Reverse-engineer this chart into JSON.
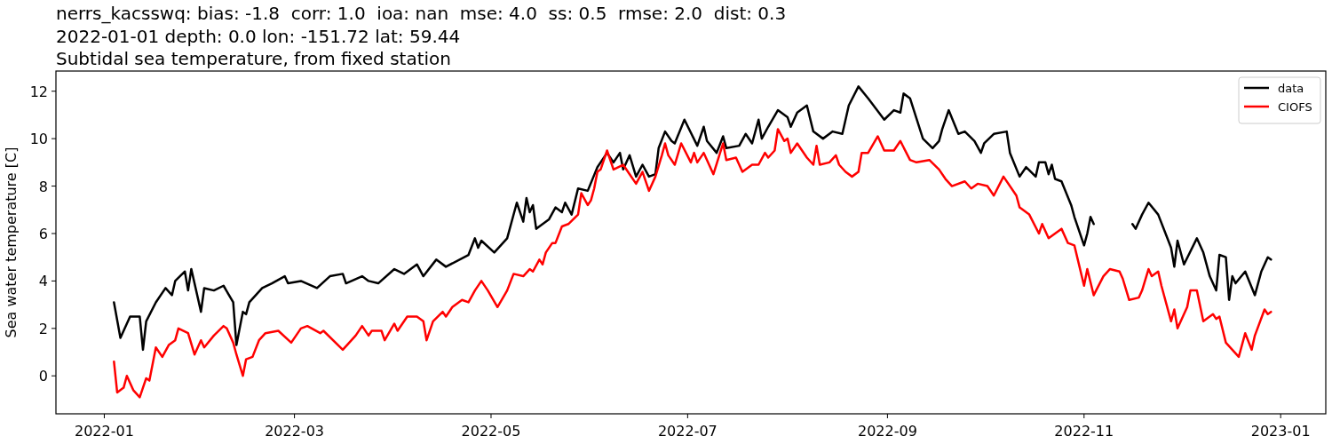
{
  "chart_data": {
    "type": "line",
    "title": "nerrs_kacsswq: bias: -1.8  corr: 1.0  ioa: nan  mse: 4.0  ss: 0.5  rmse: 2.0  dist: 0.3",
    "subtitle": "2022-01-01 depth: 0.0 lon: -151.72 lat: 59.44\nSubtidal sea temperature, from fixed station",
    "ylabel": "Sea water temperature [C]",
    "xlim": [
      "2021-12-17",
      "2023-01-15"
    ],
    "xticks": [
      "2022-01",
      "2022-03",
      "2022-05",
      "2022-07",
      "2022-09",
      "2022-11",
      "2023-01"
    ],
    "ylim": [
      -1.6,
      12.85
    ],
    "yticks": [
      0,
      2,
      4,
      6,
      8,
      10,
      12
    ],
    "grid": false,
    "legend": "top right",
    "line_style": "solid",
    "marker": "none",
    "series": [
      {
        "name": "data",
        "color": "#000000",
        "x": [
          "2022-01-04",
          "2022-01-06",
          "2022-01-09",
          "2022-01-12",
          "2022-01-13",
          "2022-01-14",
          "2022-01-17",
          "2022-01-20",
          "2022-01-22",
          "2022-01-23",
          "2022-01-26",
          "2022-01-27",
          "2022-01-28",
          "2022-01-31",
          "2022-02-01",
          "2022-02-04",
          "2022-02-07",
          "2022-02-10",
          "2022-02-11",
          "2022-02-13",
          "2022-02-14",
          "2022-02-15",
          "2022-02-19",
          "2022-02-22",
          "2022-02-26",
          "2022-02-27",
          "2022-03-03",
          "2022-03-08",
          "2022-03-12",
          "2022-03-16",
          "2022-03-17",
          "2022-03-22",
          "2022-03-24",
          "2022-03-27",
          "2022-04-01",
          "2022-04-04",
          "2022-04-08",
          "2022-04-10",
          "2022-04-14",
          "2022-04-17",
          "2022-04-24",
          "2022-04-26",
          "2022-04-27",
          "2022-04-28",
          "2022-05-02",
          "2022-05-06",
          "2022-05-09",
          "2022-05-11",
          "2022-05-12",
          "2022-05-13",
          "2022-05-14",
          "2022-05-15",
          "2022-05-19",
          "2022-05-21",
          "2022-05-23",
          "2022-05-24",
          "2022-05-26",
          "2022-05-28",
          "2022-05-31",
          "2022-06-03",
          "2022-06-06",
          "2022-06-08",
          "2022-06-10",
          "2022-06-11",
          "2022-06-13",
          "2022-06-15",
          "2022-06-17",
          "2022-06-19",
          "2022-06-21",
          "2022-06-22",
          "2022-06-24",
          "2022-06-26",
          "2022-06-27",
          "2022-06-30",
          "2022-07-04",
          "2022-07-06",
          "2022-07-07",
          "2022-07-10",
          "2022-07-12",
          "2022-07-13",
          "2022-07-17",
          "2022-07-19",
          "2022-07-21",
          "2022-07-23",
          "2022-07-24",
          "2022-07-26",
          "2022-07-29",
          "2022-08-01",
          "2022-08-02",
          "2022-08-04",
          "2022-08-07",
          "2022-08-09",
          "2022-08-12",
          "2022-08-15",
          "2022-08-18",
          "2022-08-20",
          "2022-08-23",
          "2022-08-26",
          "2022-08-31",
          "2022-09-03",
          "2022-09-05",
          "2022-09-06",
          "2022-09-08",
          "2022-09-12",
          "2022-09-15",
          "2022-09-17",
          "2022-09-18",
          "2022-09-20",
          "2022-09-23",
          "2022-09-25",
          "2022-09-28",
          "2022-09-30",
          "2022-10-01",
          "2022-10-04",
          "2022-10-08",
          "2022-10-09",
          "2022-10-12",
          "2022-10-14",
          "2022-10-17",
          "2022-10-18",
          "2022-10-20",
          "2022-10-21",
          "2022-10-22",
          "2022-10-23",
          "2022-10-25",
          "2022-10-28",
          "2022-10-29",
          "2022-11-01",
          "2022-11-02",
          "2022-11-03",
          "2022-11-04",
          "2022-11-10",
          "2022-11-16",
          "2022-11-17",
          "2022-11-19",
          "2022-11-21",
          "2022-11-24",
          "2022-11-28",
          "2022-11-29",
          "2022-11-30",
          "2022-12-02",
          "2022-12-06",
          "2022-12-08",
          "2022-12-10",
          "2022-12-12",
          "2022-12-13",
          "2022-12-15",
          "2022-12-16",
          "2022-12-17",
          "2022-12-18",
          "2022-12-21",
          "2022-12-24",
          "2022-12-26",
          "2022-12-28",
          "2022-12-29"
        ],
        "values": [
          3.1,
          1.6,
          2.5,
          2.5,
          1.1,
          2.3,
          3.1,
          3.7,
          3.4,
          4.0,
          4.4,
          3.6,
          4.5,
          2.7,
          3.7,
          3.6,
          3.8,
          3.1,
          1.3,
          2.7,
          2.6,
          3.1,
          3.7,
          3.9,
          4.2,
          3.9,
          4.0,
          3.7,
          4.2,
          4.3,
          3.9,
          4.2,
          4.0,
          3.9,
          4.5,
          4.3,
          4.7,
          4.2,
          4.9,
          4.6,
          5.1,
          5.8,
          5.4,
          5.7,
          5.2,
          5.8,
          7.3,
          6.5,
          7.5,
          6.9,
          7.2,
          6.2,
          6.6,
          7.1,
          6.9,
          7.3,
          6.8,
          7.9,
          7.8,
          8.8,
          9.4,
          9.0,
          9.4,
          8.7,
          9.3,
          8.4,
          8.9,
          8.4,
          8.5,
          9.6,
          10.3,
          9.9,
          9.8,
          10.8,
          9.7,
          10.5,
          9.9,
          9.4,
          10.1,
          9.6,
          9.7,
          10.2,
          9.8,
          10.8,
          10.0,
          10.5,
          11.2,
          10.9,
          10.5,
          11.1,
          11.4,
          10.3,
          10.0,
          10.3,
          10.2,
          11.4,
          12.2,
          11.7,
          10.8,
          11.2,
          11.1,
          11.9,
          11.7,
          10.0,
          9.6,
          9.9,
          10.4,
          11.2,
          10.2,
          10.3,
          9.9,
          9.4,
          9.8,
          10.2,
          10.3,
          9.4,
          8.4,
          8.8,
          8.4,
          9.0,
          9.0,
          8.5,
          8.9,
          8.3,
          8.2,
          7.2,
          6.7,
          5.5,
          6.0,
          6.7,
          6.4,
          null,
          6.4,
          6.2,
          6.8,
          7.3,
          6.8,
          5.4,
          4.6,
          5.7,
          4.7,
          5.8,
          5.2,
          4.2,
          3.6,
          5.1,
          5.0,
          3.2,
          4.2,
          3.9,
          4.4,
          3.4,
          4.4,
          5.0,
          4.9
        ]
      },
      {
        "name": "CIOFS",
        "color": "#ff0000",
        "x": [
          "2022-01-04",
          "2022-01-05",
          "2022-01-07",
          "2022-01-08",
          "2022-01-10",
          "2022-01-12",
          "2022-01-14",
          "2022-01-15",
          "2022-01-17",
          "2022-01-19",
          "2022-01-21",
          "2022-01-23",
          "2022-01-24",
          "2022-01-27",
          "2022-01-29",
          "2022-01-31",
          "2022-02-01",
          "2022-02-04",
          "2022-02-07",
          "2022-02-08",
          "2022-02-10",
          "2022-02-11",
          "2022-02-13",
          "2022-02-14",
          "2022-02-16",
          "2022-02-18",
          "2022-02-20",
          "2022-02-24",
          "2022-02-28",
          "2022-03-03",
          "2022-03-05",
          "2022-03-09",
          "2022-03-10",
          "2022-03-16",
          "2022-03-18",
          "2022-03-20",
          "2022-03-22",
          "2022-03-24",
          "2022-03-25",
          "2022-03-28",
          "2022-03-29",
          "2022-04-01",
          "2022-04-02",
          "2022-04-05",
          "2022-04-08",
          "2022-04-10",
          "2022-04-11",
          "2022-04-13",
          "2022-04-16",
          "2022-04-17",
          "2022-04-19",
          "2022-04-22",
          "2022-04-24",
          "2022-04-26",
          "2022-04-28",
          "2022-04-30",
          "2022-05-03",
          "2022-05-06",
          "2022-05-08",
          "2022-05-11",
          "2022-05-13",
          "2022-05-14",
          "2022-05-16",
          "2022-05-17",
          "2022-05-18",
          "2022-05-20",
          "2022-05-21",
          "2022-05-23",
          "2022-05-25",
          "2022-05-28",
          "2022-05-29",
          "2022-05-31",
          "2022-06-01",
          "2022-06-02",
          "2022-06-03",
          "2022-06-04",
          "2022-06-06",
          "2022-06-08",
          "2022-06-11",
          "2022-06-13",
          "2022-06-15",
          "2022-06-17",
          "2022-06-19",
          "2022-06-21",
          "2022-06-23",
          "2022-06-24",
          "2022-06-25",
          "2022-06-27",
          "2022-06-29",
          "2022-07-02",
          "2022-07-03",
          "2022-07-04",
          "2022-07-06",
          "2022-07-09",
          "2022-07-12",
          "2022-07-13",
          "2022-07-16",
          "2022-07-18",
          "2022-07-21",
          "2022-07-23",
          "2022-07-25",
          "2022-07-26",
          "2022-07-28",
          "2022-07-29",
          "2022-07-31",
          "2022-08-01",
          "2022-08-02",
          "2022-08-04",
          "2022-08-07",
          "2022-08-09",
          "2022-08-10",
          "2022-08-11",
          "2022-08-14",
          "2022-08-16",
          "2022-08-17",
          "2022-08-19",
          "2022-08-21",
          "2022-08-23",
          "2022-08-24",
          "2022-08-26",
          "2022-08-29",
          "2022-08-31",
          "2022-09-03",
          "2022-09-05",
          "2022-09-08",
          "2022-09-10",
          "2022-09-14",
          "2022-09-17",
          "2022-09-19",
          "2022-09-21",
          "2022-09-25",
          "2022-09-27",
          "2022-09-29",
          "2022-10-02",
          "2022-10-04",
          "2022-10-07",
          "2022-10-11",
          "2022-10-12",
          "2022-10-15",
          "2022-10-18",
          "2022-10-19",
          "2022-10-21",
          "2022-10-25",
          "2022-10-27",
          "2022-10-29",
          "2022-11-01",
          "2022-11-02",
          "2022-11-04",
          "2022-11-07",
          "2022-11-09",
          "2022-11-12",
          "2022-11-13",
          "2022-11-15",
          "2022-11-18",
          "2022-11-19",
          "2022-11-21",
          "2022-11-22",
          "2022-11-24",
          "2022-11-25",
          "2022-11-28",
          "2022-11-29",
          "2022-11-30",
          "2022-12-03",
          "2022-12-04",
          "2022-12-06",
          "2022-12-08",
          "2022-12-11",
          "2022-12-12",
          "2022-12-13",
          "2022-12-15",
          "2022-12-17",
          "2022-12-19",
          "2022-12-21",
          "2022-12-23",
          "2022-12-24",
          "2022-12-27",
          "2022-12-28",
          "2022-12-29"
        ],
        "values": [
          0.6,
          -0.7,
          -0.5,
          0.0,
          -0.6,
          -0.9,
          -0.1,
          -0.2,
          1.2,
          0.8,
          1.3,
          1.5,
          2.0,
          1.8,
          0.9,
          1.5,
          1.2,
          1.7,
          2.1,
          2.0,
          1.4,
          0.9,
          0.0,
          0.7,
          0.8,
          1.5,
          1.8,
          1.9,
          1.4,
          2.0,
          2.1,
          1.8,
          1.9,
          1.1,
          1.4,
          1.7,
          2.1,
          1.7,
          1.9,
          1.9,
          1.5,
          2.2,
          1.9,
          2.5,
          2.5,
          2.3,
          1.5,
          2.3,
          2.7,
          2.5,
          2.9,
          3.2,
          3.1,
          3.6,
          4.0,
          3.6,
          2.9,
          3.6,
          4.3,
          4.2,
          4.5,
          4.4,
          4.9,
          4.7,
          5.2,
          5.6,
          5.6,
          6.3,
          6.4,
          6.8,
          7.7,
          7.2,
          7.4,
          7.9,
          8.6,
          8.7,
          9.5,
          8.7,
          8.9,
          8.5,
          8.1,
          8.6,
          7.8,
          8.4,
          9.3,
          9.8,
          9.3,
          8.9,
          9.8,
          9.0,
          9.4,
          9.0,
          9.4,
          8.5,
          9.8,
          9.1,
          9.2,
          8.6,
          8.9,
          8.9,
          9.4,
          9.2,
          9.5,
          10.4,
          9.9,
          10.0,
          9.4,
          9.8,
          9.2,
          8.9,
          9.7,
          8.9,
          9.0,
          9.3,
          8.9,
          8.6,
          8.4,
          8.6,
          9.4,
          9.4,
          10.1,
          9.5,
          9.5,
          9.9,
          9.1,
          9.0,
          9.1,
          8.7,
          8.3,
          8.0,
          8.2,
          7.9,
          8.1,
          8.0,
          7.6,
          8.4,
          7.6,
          7.1,
          6.8,
          6.0,
          6.4,
          5.8,
          6.2,
          5.6,
          5.5,
          3.8,
          4.5,
          3.4,
          4.2,
          4.5,
          4.4,
          4.1,
          3.2,
          3.3,
          3.6,
          4.5,
          4.2,
          4.4,
          3.8,
          2.3,
          2.8,
          2.0,
          2.9,
          3.6,
          3.6,
          2.3,
          2.6,
          2.4,
          2.5,
          1.4,
          1.1,
          0.8,
          1.8,
          1.1,
          1.7,
          2.8,
          2.6,
          2.7
        ]
      }
    ]
  }
}
